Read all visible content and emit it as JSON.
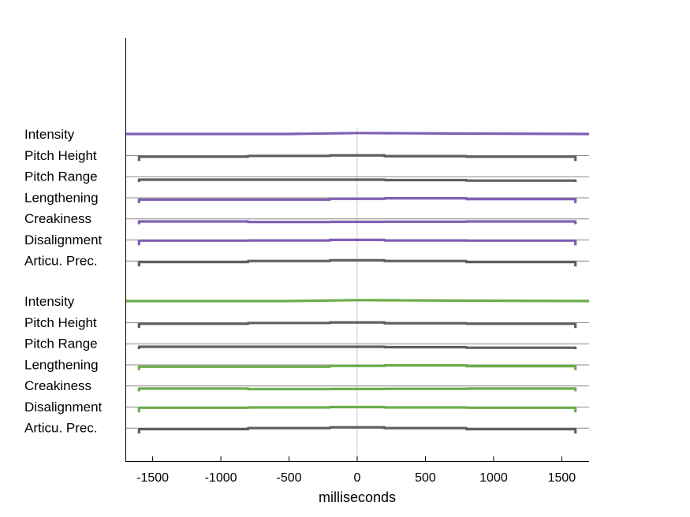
{
  "chart_data": {
    "type": "line",
    "xlabel": "milliseconds",
    "xlim": [
      -1700,
      1700
    ],
    "x_ticks": [
      -1500,
      -1000,
      -500,
      0,
      500,
      1000,
      1500
    ],
    "x_tick_labels": [
      "-1500",
      "-1000",
      "-500",
      "0",
      "500",
      "1000",
      "1500"
    ],
    "zero_line": 0,
    "grid": false,
    "colors": {
      "purple": "#7f5fb4",
      "green": "#6aad4b",
      "gray": "#5f5f5f",
      "baseline": "#888888",
      "zero": "#d4d4d4"
    },
    "segment_edges_ms": [
      -1600,
      -800,
      -200,
      200,
      800,
      1600
    ],
    "groups": [
      {
        "rows": [
          {
            "label": "Intensity",
            "color": "purple",
            "shape": "full",
            "levels": [
              0.0,
              0.0,
              0.0,
              0.12,
              0.1,
              0.05,
              0.0
            ]
          },
          {
            "label": "Pitch Height",
            "color": "gray",
            "shape": "step",
            "levels": [
              0.55,
              0.65,
              0.72,
              0.62,
              0.55
            ]
          },
          {
            "label": "Pitch Range",
            "color": "gray",
            "shape": "step",
            "levels": [
              0.3,
              0.3,
              0.3,
              0.25,
              0.18
            ]
          },
          {
            "label": "Lengthening",
            "color": "purple",
            "shape": "step",
            "levels": [
              0.45,
              0.45,
              0.55,
              0.62,
              0.52
            ]
          },
          {
            "label": "Creakiness",
            "color": "purple",
            "shape": "step",
            "levels": [
              0.35,
              0.28,
              0.3,
              0.32,
              0.35
            ]
          },
          {
            "label": "Disalignment",
            "color": "purple",
            "shape": "step",
            "levels": [
              0.6,
              0.62,
              0.68,
              0.62,
              0.6
            ]
          },
          {
            "label": "Articu. Prec.",
            "color": "gray",
            "shape": "step",
            "levels": [
              0.55,
              0.68,
              0.78,
              0.68,
              0.55
            ]
          }
        ]
      },
      {
        "rows": [
          {
            "label": "Intensity",
            "color": "green",
            "shape": "full",
            "levels": [
              0.0,
              0.0,
              0.0,
              0.12,
              0.1,
              0.05,
              0.0
            ]
          },
          {
            "label": "Pitch Height",
            "color": "gray",
            "shape": "step",
            "levels": [
              0.55,
              0.65,
              0.72,
              0.62,
              0.55
            ]
          },
          {
            "label": "Pitch Range",
            "color": "gray",
            "shape": "step",
            "levels": [
              0.3,
              0.3,
              0.3,
              0.25,
              0.18
            ]
          },
          {
            "label": "Lengthening",
            "color": "green",
            "shape": "step",
            "levels": [
              0.45,
              0.45,
              0.55,
              0.62,
              0.52
            ]
          },
          {
            "label": "Creakiness",
            "color": "green",
            "shape": "step",
            "levels": [
              0.35,
              0.28,
              0.3,
              0.32,
              0.35
            ]
          },
          {
            "label": "Disalignment",
            "color": "green",
            "shape": "step",
            "levels": [
              0.6,
              0.62,
              0.68,
              0.62,
              0.6
            ]
          },
          {
            "label": "Articu. Prec.",
            "color": "gray",
            "shape": "step",
            "levels": [
              0.55,
              0.68,
              0.78,
              0.68,
              0.55
            ]
          }
        ]
      }
    ]
  }
}
